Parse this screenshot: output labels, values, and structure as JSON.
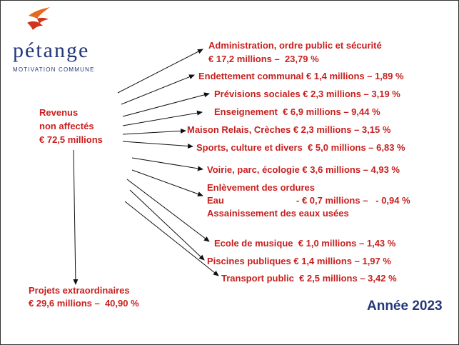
{
  "logo": {
    "name": "pétange",
    "tagline": "MOTIVATION COMMUNE"
  },
  "source": {
    "lines": [
      "Revenus",
      "non affectés",
      "€ 72,5 millions"
    ]
  },
  "items": [
    {
      "lines": [
        "Administration, ordre public et sécurité",
        "€ 17,2 millions –  23,79 %"
      ]
    },
    {
      "lines": [
        "Endettement communal € 1,4 millions – 1,89 %"
      ]
    },
    {
      "lines": [
        "Prévisions sociales € 2,3 millions – 3,19 %"
      ]
    },
    {
      "lines": [
        "Enseignement  € 6,9 millions – 9,44 %"
      ]
    },
    {
      "lines": [
        "Maison Relais, Crèches € 2,3 millions – 3,15 %"
      ]
    },
    {
      "lines": [
        "Sports, culture et divers  € 5,0 millions – 6,83 %"
      ]
    },
    {
      "lines": [
        "Voirie, parc, écologie € 3,6 millions – 4,93 %"
      ]
    },
    {
      "lines": [
        "Enlèvement des ordures",
        "Eau",
        "- € 0,7 millions –   - 0,94 %",
        "Assainissement des eaux usées"
      ]
    },
    {
      "lines": [
        "Ecole de musique  € 1,0 millions – 1,43 %"
      ]
    },
    {
      "lines": [
        "Piscines publiques € 1,4 millions – 1,97 %"
      ]
    },
    {
      "lines": [
        "Transport public  € 2,5 millions – 3,42 %"
      ]
    }
  ],
  "projects": {
    "lines": [
      "Projets extraordinaires",
      "€ 29,6 millions –  40,90 %"
    ]
  },
  "year": "Année 2023"
}
